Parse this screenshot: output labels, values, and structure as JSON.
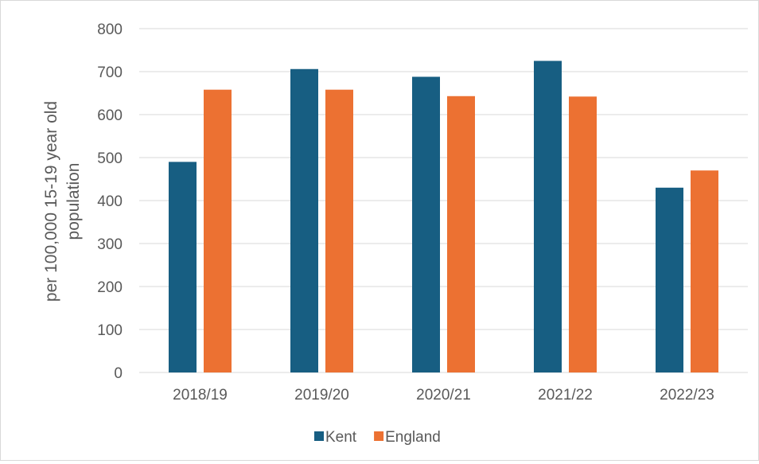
{
  "chart_data": {
    "type": "bar",
    "categories": [
      "2018/19",
      "2019/20",
      "2020/21",
      "2021/22",
      "2022/23"
    ],
    "series": [
      {
        "name": "Kent",
        "color": "#175e82",
        "values": [
          490,
          706,
          688,
          725,
          430
        ]
      },
      {
        "name": "England",
        "color": "#ec7132",
        "values": [
          658,
          658,
          643,
          642,
          470
        ]
      }
    ],
    "ylabel": [
      "per 100,000 15-19 year old",
      "population"
    ],
    "ylim": [
      0,
      800
    ],
    "yticks": [
      0,
      100,
      200,
      300,
      400,
      500,
      600,
      700,
      800
    ],
    "grid": true,
    "legend": "bottom"
  }
}
